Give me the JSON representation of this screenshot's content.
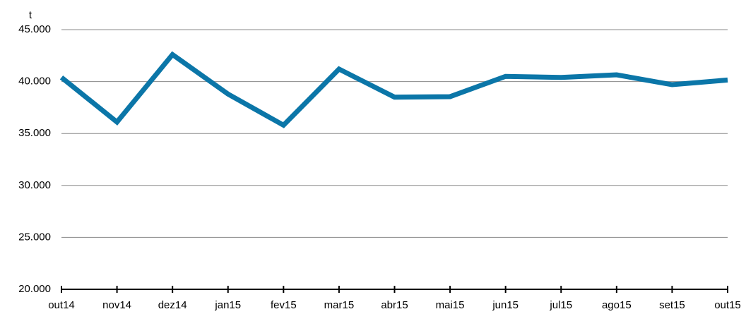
{
  "chart_data": {
    "type": "line",
    "y_axis_label": "t",
    "categories": [
      "out14",
      "nov14",
      "dez14",
      "jan15",
      "fev15",
      "mar15",
      "abr15",
      "mai15",
      "jun15",
      "jul15",
      "ago15",
      "set15",
      "out15"
    ],
    "series": [
      {
        "color": "#0b76a8",
        "values": [
          40400,
          36100,
          42600,
          38800,
          35800,
          41200,
          38500,
          38550,
          40500,
          40400,
          40650,
          39700,
          40150
        ]
      }
    ],
    "ylim": [
      20000,
      45000
    ],
    "yticks": [
      {
        "value": 20000,
        "label": "20.000"
      },
      {
        "value": 25000,
        "label": "25.000"
      },
      {
        "value": 30000,
        "label": "30.000"
      },
      {
        "value": 35000,
        "label": "35.000"
      },
      {
        "value": 40000,
        "label": "40.000"
      },
      {
        "value": 45000,
        "label": "45.000"
      }
    ],
    "grid": true
  }
}
